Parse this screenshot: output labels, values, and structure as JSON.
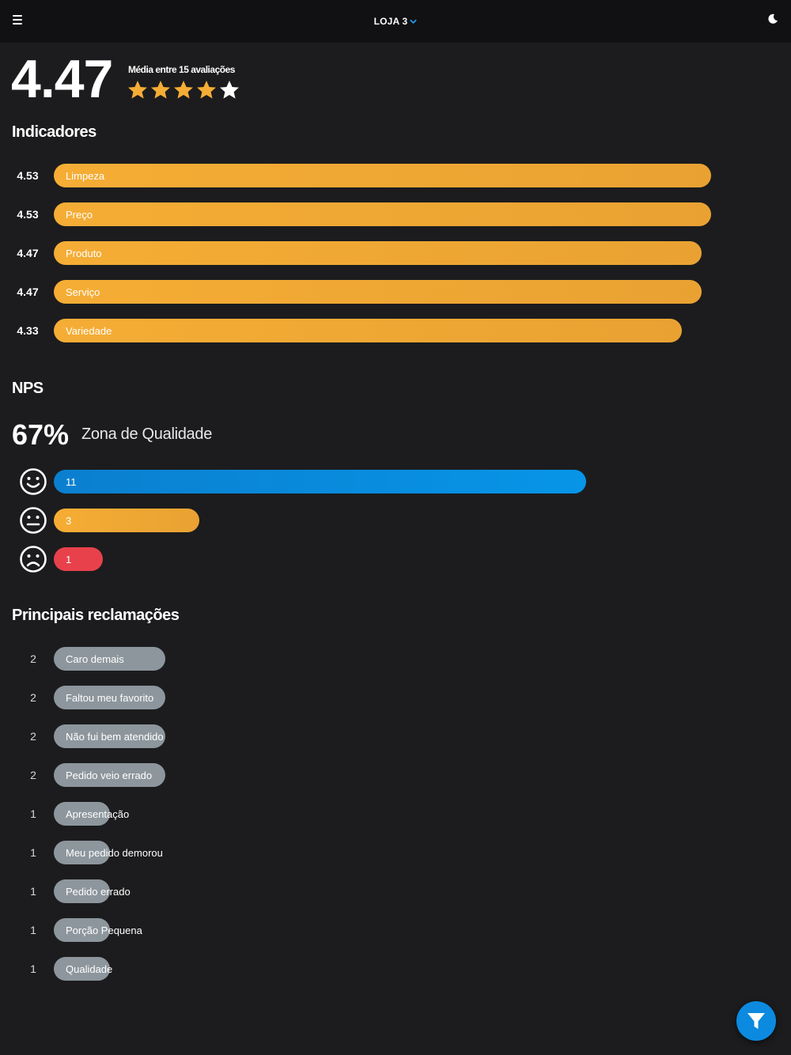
{
  "header": {
    "store_label": "LOJA 3"
  },
  "summary": {
    "score": "4.47",
    "avg_text": "Média entre 15 avaliações",
    "rating": 4.47
  },
  "indicators": {
    "title": "Indicadores",
    "items": [
      {
        "value": "4.53",
        "label": "Limpeza"
      },
      {
        "value": "4.53",
        "label": "Preço"
      },
      {
        "value": "4.47",
        "label": "Produto"
      },
      {
        "value": "4.47",
        "label": "Serviço"
      },
      {
        "value": "4.33",
        "label": "Variedade"
      }
    ]
  },
  "nps": {
    "title": "NPS",
    "percent": "67%",
    "zone": "Zona de Qualidade",
    "promoters": "11",
    "neutrals": "3",
    "detractors": "1"
  },
  "complaints": {
    "title": "Principais reclamações",
    "items": [
      {
        "count": "2",
        "label": "Caro demais"
      },
      {
        "count": "2",
        "label": "Faltou meu favorito"
      },
      {
        "count": "2",
        "label": "Não fui bem atendido"
      },
      {
        "count": "2",
        "label": "Pedido veio errado"
      },
      {
        "count": "1",
        "label": "Apresentação"
      },
      {
        "count": "1",
        "label": "Meu pedido demorou"
      },
      {
        "count": "1",
        "label": "Pedido errado"
      },
      {
        "count": "1",
        "label": "Porção Pequena"
      },
      {
        "count": "1",
        "label": "Qualidade"
      }
    ]
  },
  "colors": {
    "accent_orange": "#f5ad35",
    "nps_blue": "#0795e8",
    "nps_red": "#e8414b",
    "complaint_grey": "#8d969d"
  },
  "icons": [
    "menu-icon",
    "chevron-down-icon",
    "moon-icon",
    "star-icon",
    "smile-face-icon",
    "neutral-face-icon",
    "sad-face-icon",
    "filter-icon"
  ]
}
